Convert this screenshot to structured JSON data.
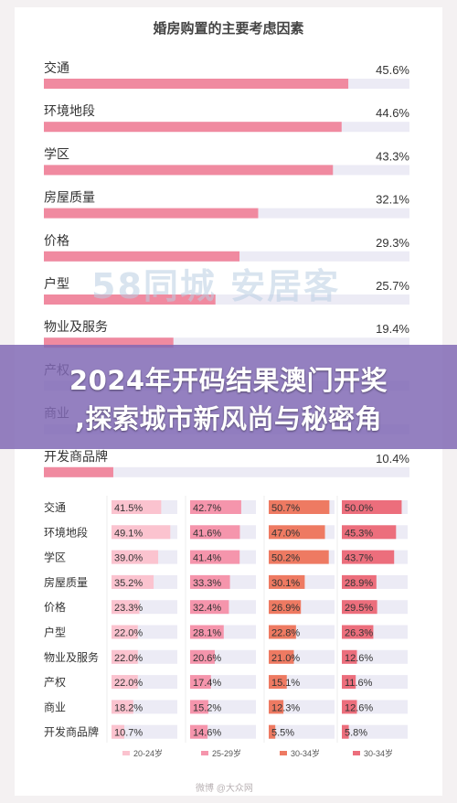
{
  "chart_data": [
    {
      "type": "bar",
      "orientation": "horizontal",
      "title": "婚房购置的主要考虑因素",
      "categories": [
        "交通",
        "环境地段",
        "学区",
        "房屋质量",
        "价格",
        "户型",
        "物业及服务",
        "产权",
        "商业",
        "开发商品牌"
      ],
      "values": [
        45.6,
        44.6,
        43.3,
        32.1,
        29.3,
        25.7,
        19.4,
        null,
        null,
        10.4
      ],
      "value_labels": [
        "45.6%",
        "44.6%",
        "43.3%",
        "32.1%",
        "29.3%",
        "25.7%",
        "19.4%",
        "",
        "",
        "10.4%"
      ],
      "xlim": [
        0,
        50
      ],
      "grid": false,
      "colors": {
        "bar": "#f08aa0",
        "track": "#ecebf5"
      }
    },
    {
      "type": "table",
      "categories": [
        "交通",
        "环境地段",
        "学区",
        "房屋质量",
        "价格",
        "户型",
        "物业及服务",
        "产权",
        "商业",
        "开发商品牌"
      ],
      "series": [
        {
          "name": "20-24岁",
          "color": "#fbc3cf",
          "values": [
            41.5,
            49.1,
            39.0,
            35.2,
            23.3,
            22.0,
            22.0,
            22.0,
            18.2,
            10.7
          ],
          "labels": [
            "41.5%",
            "49.1%",
            "39.0%",
            "35.2%",
            "23.3%",
            "22.0%",
            "22.0%",
            "22.0%",
            "18.2%",
            "10.7%"
          ]
        },
        {
          "name": "25-29岁",
          "color": "#f595ac",
          "values": [
            42.7,
            41.6,
            41.4,
            33.3,
            32.4,
            28.1,
            20.6,
            17.4,
            15.2,
            14.6
          ],
          "labels": [
            "42.7%",
            "41.6%",
            "41.4%",
            "33.3%",
            "32.4%",
            "28.1%",
            "20.6%",
            "17.4%",
            "15.2%",
            "14.6%"
          ]
        },
        {
          "name": "30-34岁",
          "color": "#ee7a62",
          "values": [
            50.7,
            47.0,
            50.2,
            30.1,
            26.9,
            22.8,
            21.0,
            15.1,
            12.3,
            5.5
          ],
          "labels": [
            "50.7%",
            "47.0%",
            "50.2%",
            "30.1%",
            "26.9%",
            "22.8%",
            "21.0%",
            "15.1%",
            "12.3%",
            "5.5%"
          ]
        },
        {
          "name": "30-34岁",
          "color": "#ec6e7c",
          "values": [
            50.0,
            45.3,
            43.7,
            28.9,
            29.5,
            26.3,
            12.6,
            11.6,
            12.6,
            5.8
          ],
          "labels": [
            "50.0%",
            "45.3%",
            "43.7%",
            "28.9%",
            "29.5%",
            "26.3%",
            "12.6%",
            "11.6%",
            "12.6%",
            "5.8%"
          ]
        }
      ],
      "column_max": 55,
      "colors": {
        "track": "#ecebf5"
      }
    }
  ],
  "watermark": "58同城 安居客",
  "banner": {
    "line1": "2024年开码结果澳门开奖",
    "line2": ",探索城市新风尚与秘密角"
  },
  "credit": "微博 @大众网"
}
